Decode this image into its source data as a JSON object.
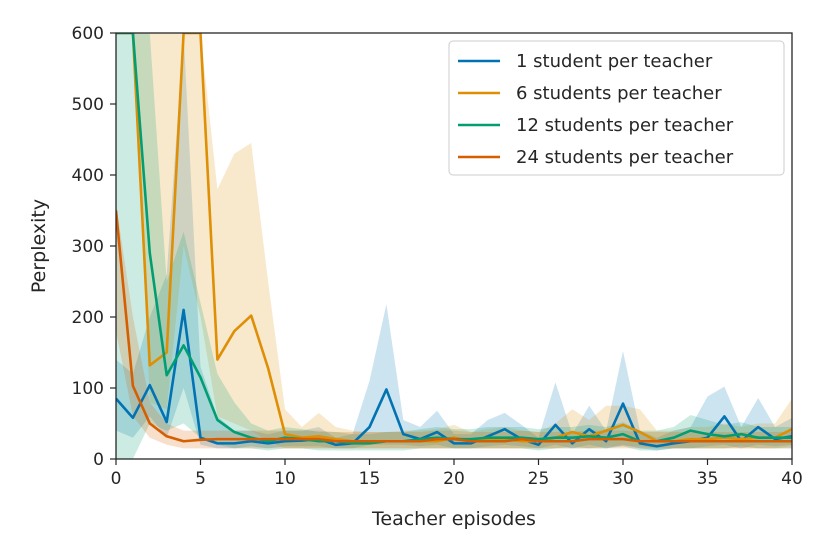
{
  "chart_data": {
    "type": "line",
    "xlabel": "Teacher episodes",
    "ylabel": "Perplexity",
    "xlim": [
      0,
      40
    ],
    "ylim": [
      0,
      600
    ],
    "xticks": [
      0,
      5,
      10,
      15,
      20,
      25,
      30,
      35,
      40
    ],
    "yticks": [
      0,
      100,
      200,
      300,
      400,
      500,
      600
    ],
    "grid": false,
    "legend_position": "top-right",
    "x": [
      0,
      1,
      2,
      3,
      4,
      5,
      6,
      7,
      8,
      9,
      10,
      11,
      12,
      13,
      14,
      15,
      16,
      17,
      18,
      19,
      20,
      21,
      22,
      23,
      24,
      25,
      26,
      27,
      28,
      29,
      30,
      31,
      32,
      33,
      34,
      35,
      36,
      37,
      38,
      39,
      40
    ],
    "series": [
      {
        "name": "1 student per teacher",
        "color": "#0173b2",
        "values": [
          85,
          58,
          104,
          52,
          210,
          30,
          22,
          22,
          25,
          22,
          25,
          26,
          28,
          20,
          22,
          45,
          98,
          35,
          28,
          38,
          22,
          22,
          32,
          42,
          28,
          20,
          48,
          22,
          42,
          25,
          78,
          22,
          18,
          22,
          25,
          30,
          60,
          25,
          45,
          28,
          32
        ],
        "lower": [
          40,
          30,
          60,
          30,
          100,
          20,
          15,
          15,
          18,
          15,
          18,
          18,
          18,
          15,
          15,
          20,
          20,
          20,
          18,
          20,
          15,
          15,
          18,
          20,
          18,
          15,
          20,
          15,
          20,
          15,
          20,
          15,
          12,
          15,
          15,
          18,
          20,
          15,
          20,
          18,
          20
        ],
        "upper": [
          140,
          120,
          200,
          260,
          600,
          130,
          60,
          40,
          40,
          35,
          40,
          40,
          45,
          30,
          35,
          110,
          218,
          55,
          45,
          68,
          35,
          35,
          55,
          65,
          48,
          30,
          108,
          35,
          75,
          40,
          152,
          40,
          30,
          40,
          45,
          88,
          102,
          45,
          86,
          45,
          58
        ]
      },
      {
        "name": "6 students per teacher",
        "color": "#de8f05",
        "values": [
          600,
          600,
          132,
          150,
          600,
          600,
          140,
          180,
          202,
          128,
          35,
          30,
          32,
          28,
          25,
          25,
          25,
          25,
          25,
          25,
          30,
          25,
          28,
          28,
          25,
          25,
          30,
          38,
          32,
          40,
          48,
          38,
          25,
          25,
          28,
          28,
          30,
          28,
          30,
          30,
          42
        ],
        "lower": [
          600,
          600,
          80,
          70,
          300,
          200,
          60,
          50,
          40,
          25,
          15,
          15,
          15,
          15,
          15,
          15,
          15,
          15,
          15,
          15,
          15,
          15,
          15,
          15,
          15,
          15,
          15,
          18,
          15,
          18,
          18,
          18,
          15,
          15,
          15,
          15,
          15,
          15,
          15,
          15,
          18
        ],
        "upper": [
          600,
          600,
          600,
          600,
          600,
          600,
          380,
          430,
          445,
          250,
          70,
          45,
          65,
          45,
          40,
          38,
          38,
          40,
          40,
          42,
          48,
          38,
          42,
          45,
          40,
          38,
          50,
          70,
          55,
          75,
          75,
          70,
          40,
          40,
          45,
          45,
          50,
          45,
          50,
          50,
          85
        ]
      },
      {
        "name": "12 students per teacher",
        "color": "#029e73",
        "values": [
          600,
          600,
          290,
          118,
          160,
          115,
          55,
          38,
          30,
          25,
          30,
          28,
          25,
          25,
          22,
          22,
          25,
          25,
          28,
          30,
          28,
          28,
          30,
          30,
          30,
          28,
          30,
          30,
          32,
          30,
          35,
          25,
          25,
          30,
          40,
          35,
          32,
          35,
          30,
          30,
          30
        ],
        "lower": [
          0,
          0,
          50,
          40,
          50,
          30,
          20,
          15,
          15,
          12,
          15,
          15,
          12,
          12,
          12,
          12,
          12,
          12,
          15,
          15,
          15,
          15,
          15,
          15,
          15,
          12,
          15,
          15,
          15,
          15,
          18,
          12,
          12,
          15,
          15,
          15,
          15,
          18,
          15,
          15,
          15
        ],
        "upper": [
          600,
          600,
          600,
          250,
          320,
          220,
          120,
          80,
          50,
          40,
          45,
          42,
          38,
          38,
          35,
          35,
          38,
          38,
          42,
          45,
          42,
          42,
          45,
          45,
          45,
          42,
          45,
          45,
          48,
          45,
          52,
          40,
          40,
          45,
          62,
          55,
          48,
          52,
          45,
          45,
          45
        ]
      },
      {
        "name": "24 students per teacher",
        "color": "#d55e00",
        "values": [
          350,
          103,
          50,
          32,
          25,
          27,
          28,
          28,
          28,
          28,
          28,
          28,
          28,
          25,
          25,
          25,
          25,
          25,
          25,
          28,
          28,
          25,
          25,
          25,
          28,
          25,
          25,
          25,
          28,
          28,
          28,
          25,
          25,
          25,
          25,
          25,
          25,
          25,
          25,
          25,
          25
        ],
        "lower": [
          180,
          60,
          30,
          20,
          15,
          15,
          15,
          15,
          15,
          15,
          15,
          15,
          15,
          15,
          15,
          15,
          15,
          15,
          15,
          15,
          15,
          15,
          15,
          15,
          15,
          15,
          15,
          15,
          15,
          15,
          15,
          15,
          15,
          15,
          15,
          15,
          15,
          15,
          15,
          15,
          15
        ],
        "upper": [
          360,
          200,
          80,
          50,
          40,
          40,
          40,
          40,
          40,
          40,
          40,
          40,
          40,
          38,
          38,
          38,
          38,
          38,
          38,
          40,
          40,
          38,
          38,
          38,
          40,
          38,
          38,
          38,
          40,
          40,
          40,
          38,
          38,
          38,
          38,
          38,
          38,
          38,
          38,
          38,
          38
        ]
      }
    ]
  }
}
